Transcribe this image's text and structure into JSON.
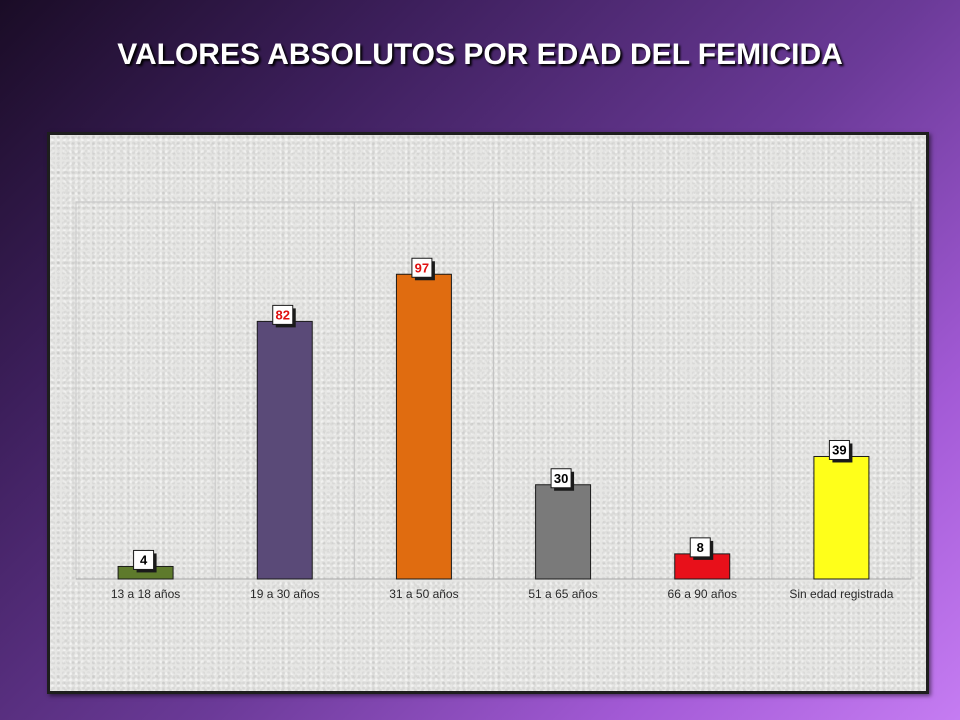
{
  "chart_data": {
    "type": "bar",
    "title": "VALORES ABSOLUTOS POR EDAD DEL FEMICIDA",
    "xlabel": "",
    "ylabel": "",
    "categories": [
      "13 a 18 años",
      "19 a 30 años",
      "31 a 50 años",
      "51 a 65 años",
      "66 a 90 años",
      "Sin edad registrada"
    ],
    "values": [
      4,
      82,
      97,
      30,
      8,
      39
    ],
    "ylim": [
      0,
      120
    ],
    "grid": false,
    "legend": "none",
    "bar_colors": [
      "#5e7a2c",
      "#5a4a78",
      "#e06c10",
      "#7a7a7a",
      "#e8101a",
      "#ffff1a"
    ],
    "label_colors": [
      "#000000",
      "#e01010",
      "#e01010",
      "#000000",
      "#000000",
      "#000000"
    ]
  }
}
